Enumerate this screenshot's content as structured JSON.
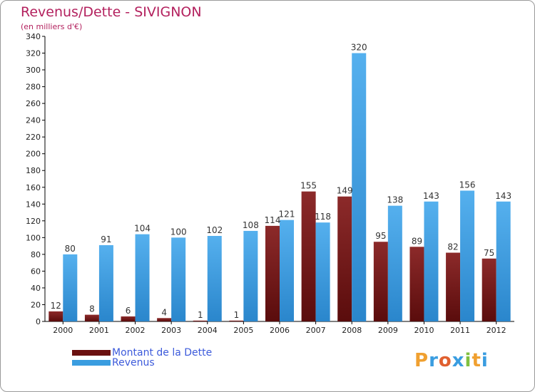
{
  "chart_data": {
    "type": "bar",
    "title": "Revenus/Dette - SIVIGNON",
    "subtitle": "(en milliers d'€)",
    "categories": [
      "2000",
      "2001",
      "2002",
      "2003",
      "2004",
      "2005",
      "2006",
      "2007",
      "2008",
      "2009",
      "2010",
      "2011",
      "2012"
    ],
    "series": [
      {
        "name": "Montant de la Dette",
        "color": "#7a1a1a",
        "values": [
          12,
          8,
          6,
          4,
          1,
          1,
          114,
          155,
          149,
          95,
          89,
          82,
          75
        ]
      },
      {
        "name": "Revenus",
        "color": "#3a9de0",
        "values": [
          80,
          91,
          104,
          100,
          102,
          108,
          121,
          118,
          320,
          138,
          143,
          156,
          143
        ]
      }
    ],
    "ylim": [
      0,
      340
    ],
    "yticks": [
      0,
      20,
      40,
      60,
      80,
      100,
      120,
      140,
      160,
      180,
      200,
      220,
      240,
      260,
      280,
      300,
      320,
      340
    ],
    "grid": false,
    "legend_position": "bottom-left"
  },
  "logo": {
    "text": "Proxiti",
    "letters": [
      {
        "ch": "P",
        "color": "#f0a030"
      },
      {
        "ch": "r",
        "color": "#3a9de0"
      },
      {
        "ch": "o",
        "color": "#e06030"
      },
      {
        "ch": "x",
        "color": "#3a9de0"
      },
      {
        "ch": "i",
        "color": "#80c040"
      },
      {
        "ch": "t",
        "color": "#f0a030"
      },
      {
        "ch": "i",
        "color": "#3a9de0"
      }
    ]
  }
}
